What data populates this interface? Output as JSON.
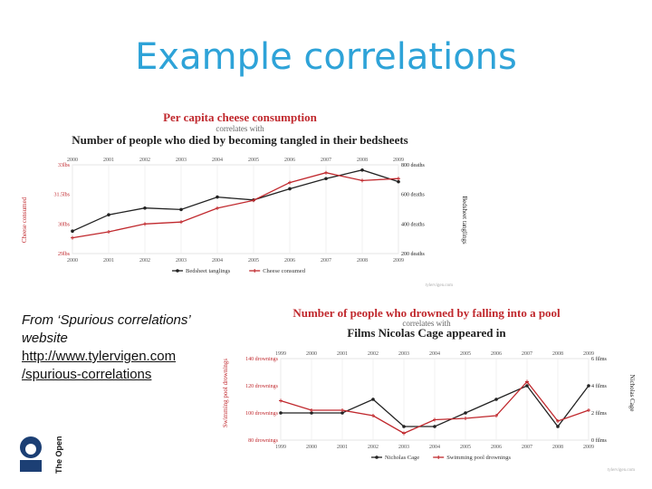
{
  "slide": {
    "title": "Example correlations",
    "caption_line1": "From ‘Spurious correlations’ website",
    "link_line1": "http://www.tylervigen.com",
    "link_line2": "/spurious-correlations",
    "logo_text": "The Open University"
  },
  "chart_data": [
    {
      "type": "line",
      "title_top": "Per capita cheese consumption",
      "correlates_with": "correlates with",
      "title_bottom": "Number of people who died by becoming tangled in their bedsheets",
      "x": [
        "2000",
        "2001",
        "2002",
        "2003",
        "2004",
        "2005",
        "2006",
        "2007",
        "2008",
        "2009"
      ],
      "left_axis": {
        "label": "Cheese consumed",
        "ticks": [
          "33lbs",
          "31.5lbs",
          "30lbs",
          "29lbs"
        ]
      },
      "right_axis": {
        "label": "Bedsheet tanglings",
        "ticks": [
          "800 deaths",
          "600 deaths",
          "400 deaths",
          "200 deaths"
        ]
      },
      "series": [
        {
          "name": "Bedsheet tanglings",
          "color": "#222222",
          "values": [
            327,
            456,
            509,
            497,
            596,
            573,
            661,
            741,
            809,
            717
          ]
        },
        {
          "name": "Cheese consumed",
          "color": "#c0282d",
          "values": [
            29.8,
            30.1,
            30.5,
            30.6,
            31.3,
            31.7,
            32.6,
            33.1,
            32.7,
            32.8
          ]
        }
      ],
      "source": "tylervigen.com"
    },
    {
      "type": "line",
      "title_top": "Number of people who drowned by falling into a pool",
      "correlates_with": "correlates with",
      "title_bottom": "Films Nicolas Cage appeared in",
      "x": [
        "1999",
        "2000",
        "2001",
        "2002",
        "2003",
        "2004",
        "2005",
        "2006",
        "2007",
        "2008",
        "2009"
      ],
      "left_axis": {
        "label": "Swimming pool drownings",
        "ticks": [
          "140 drownings",
          "120 drownings",
          "100 drownings",
          "80 drownings"
        ]
      },
      "right_axis": {
        "label": "Nicholas Cage",
        "ticks": [
          "6 films",
          "4 films",
          "2 films",
          "0 films"
        ]
      },
      "series": [
        {
          "name": "Nicholas Cage",
          "color": "#222222",
          "values": [
            2,
            2,
            2,
            3,
            1,
            1,
            2,
            3,
            4,
            1,
            4
          ]
        },
        {
          "name": "Swimming pool drownings",
          "color": "#c0282d",
          "values": [
            109,
            102,
            102,
            98,
            85,
            95,
            96,
            98,
            123,
            94,
            102
          ]
        }
      ],
      "source": "tylervigen.com"
    }
  ]
}
